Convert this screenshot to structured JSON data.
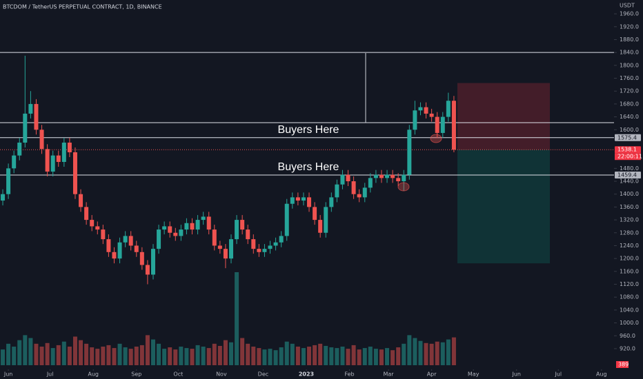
{
  "chart_data": {
    "type": "candlestick",
    "title": "BTCDOM / TetherUS PERPETUAL CONTRACT, 1D, BINANCE",
    "y_unit": "USDT",
    "xlim": [
      -6,
      435
    ],
    "ylim": [
      830,
      2003
    ],
    "xticks": [
      {
        "value": 0,
        "label": "Jun"
      },
      {
        "value": 30,
        "label": "Jul"
      },
      {
        "value": 61,
        "label": "Aug"
      },
      {
        "value": 92,
        "label": "Sep"
      },
      {
        "value": 122,
        "label": "Oct"
      },
      {
        "value": 153,
        "label": "Nov"
      },
      {
        "value": 183,
        "label": "Dec"
      },
      {
        "value": 214,
        "label": "2023"
      },
      {
        "value": 245,
        "label": "Feb"
      },
      {
        "value": 273,
        "label": "Mar"
      },
      {
        "value": 304,
        "label": "Apr"
      },
      {
        "value": 334,
        "label": "May"
      },
      {
        "value": 365,
        "label": "Jun"
      },
      {
        "value": 395,
        "label": "Jul"
      },
      {
        "value": 426,
        "label": "Aug"
      }
    ],
    "yticks": [
      {
        "value": 1960,
        "label": "1960.0"
      },
      {
        "value": 1920,
        "label": "1920.0"
      },
      {
        "value": 1880,
        "label": "1880.0"
      },
      {
        "value": 1840,
        "label": "1840.0"
      },
      {
        "value": 1800,
        "label": "1800.0"
      },
      {
        "value": 1760,
        "label": "1760.0"
      },
      {
        "value": 1720,
        "label": "1720.0"
      },
      {
        "value": 1680,
        "label": "1680.0"
      },
      {
        "value": 1640,
        "label": "1640.0"
      },
      {
        "value": 1600,
        "label": "1600.0"
      },
      {
        "value": 1480,
        "label": "1480.0"
      },
      {
        "value": 1440,
        "label": "1440.0"
      },
      {
        "value": 1400,
        "label": "1400.0"
      },
      {
        "value": 1360,
        "label": "1360.0"
      },
      {
        "value": 1320,
        "label": "1320.0"
      },
      {
        "value": 1280,
        "label": "1280.0"
      },
      {
        "value": 1240,
        "label": "1240.0"
      },
      {
        "value": 1200,
        "label": "1200.0"
      },
      {
        "value": 1160,
        "label": "1160.0"
      },
      {
        "value": 1120,
        "label": "1120.0"
      },
      {
        "value": 1080,
        "label": "1080.0"
      },
      {
        "value": 1040,
        "label": "1040.0"
      },
      {
        "value": 1000,
        "label": "1000.0"
      },
      {
        "value": 960,
        "label": "960.0"
      },
      {
        "value": 920,
        "label": "920.0"
      }
    ],
    "up_color": "#26a69a",
    "down_color": "#ef5350",
    "x": [
      -4,
      0,
      4,
      8,
      12,
      16,
      20,
      24,
      28,
      32,
      36,
      40,
      44,
      48,
      52,
      56,
      60,
      64,
      68,
      72,
      76,
      80,
      84,
      88,
      92,
      96,
      100,
      104,
      108,
      112,
      116,
      120,
      124,
      128,
      132,
      136,
      140,
      144,
      148,
      152,
      156,
      160,
      164,
      168,
      172,
      176,
      180,
      184,
      188,
      192,
      196,
      200,
      204,
      208,
      212,
      216,
      220,
      224,
      228,
      232,
      236,
      240,
      244,
      248,
      252,
      256,
      260,
      264,
      268,
      272,
      276,
      280,
      284,
      288,
      292,
      296,
      300,
      304,
      308,
      312,
      316,
      320
    ],
    "open": [
      1380,
      1400,
      1480,
      1520,
      1560,
      1650,
      1680,
      1600,
      1540,
      1470,
      1520,
      1500,
      1560,
      1530,
      1400,
      1360,
      1320,
      1300,
      1290,
      1260,
      1220,
      1200,
      1250,
      1270,
      1240,
      1220,
      1180,
      1150,
      1230,
      1290,
      1300,
      1280,
      1270,
      1290,
      1310,
      1290,
      1320,
      1330,
      1290,
      1240,
      1230,
      1200,
      1260,
      1320,
      1290,
      1260,
      1230,
      1220,
      1230,
      1240,
      1250,
      1270,
      1370,
      1390,
      1380,
      1390,
      1360,
      1320,
      1280,
      1360,
      1390,
      1430,
      1460,
      1440,
      1400,
      1390,
      1420,
      1450,
      1460,
      1450,
      1460,
      1450,
      1440,
      1460,
      1600,
      1660,
      1670,
      1650,
      1640,
      1590,
      1640,
      1690
    ],
    "high": [
      1415,
      1495,
      1535,
      1575,
      1830,
      1720,
      1695,
      1615,
      1555,
      1535,
      1535,
      1575,
      1575,
      1545,
      1415,
      1375,
      1335,
      1315,
      1305,
      1275,
      1235,
      1265,
      1285,
      1285,
      1255,
      1235,
      1195,
      1245,
      1305,
      1315,
      1315,
      1295,
      1305,
      1325,
      1325,
      1335,
      1345,
      1345,
      1305,
      1255,
      1245,
      1275,
      1335,
      1335,
      1305,
      1275,
      1245,
      1245,
      1255,
      1265,
      1285,
      1385,
      1405,
      1405,
      1405,
      1405,
      1375,
      1335,
      1375,
      1405,
      1445,
      1475,
      1475,
      1455,
      1415,
      1435,
      1465,
      1475,
      1475,
      1475,
      1475,
      1465,
      1475,
      1615,
      1690,
      1685,
      1685,
      1665,
      1655,
      1655,
      1715,
      1705
    ],
    "low": [
      1365,
      1385,
      1465,
      1505,
      1545,
      1635,
      1585,
      1525,
      1455,
      1455,
      1485,
      1485,
      1515,
      1385,
      1345,
      1305,
      1285,
      1275,
      1245,
      1205,
      1185,
      1185,
      1235,
      1225,
      1205,
      1165,
      1120,
      1135,
      1215,
      1275,
      1265,
      1255,
      1255,
      1275,
      1275,
      1275,
      1305,
      1275,
      1225,
      1215,
      1170,
      1185,
      1245,
      1275,
      1245,
      1215,
      1205,
      1205,
      1215,
      1225,
      1235,
      1255,
      1355,
      1365,
      1365,
      1345,
      1305,
      1265,
      1265,
      1345,
      1375,
      1415,
      1425,
      1385,
      1375,
      1375,
      1405,
      1435,
      1435,
      1435,
      1435,
      1425,
      1410,
      1445,
      1585,
      1645,
      1635,
      1625,
      1575,
      1575,
      1625,
      1530
    ],
    "close": [
      1400,
      1480,
      1520,
      1560,
      1650,
      1680,
      1600,
      1540,
      1470,
      1520,
      1500,
      1560,
      1530,
      1400,
      1360,
      1320,
      1300,
      1290,
      1260,
      1220,
      1200,
      1250,
      1270,
      1240,
      1220,
      1180,
      1150,
      1230,
      1290,
      1300,
      1280,
      1270,
      1290,
      1310,
      1290,
      1320,
      1330,
      1290,
      1240,
      1230,
      1200,
      1260,
      1320,
      1290,
      1260,
      1230,
      1220,
      1230,
      1240,
      1250,
      1270,
      1370,
      1390,
      1380,
      1390,
      1360,
      1320,
      1280,
      1360,
      1390,
      1430,
      1460,
      1440,
      1400,
      1390,
      1420,
      1450,
      1460,
      1450,
      1460,
      1450,
      1440,
      1460,
      1600,
      1660,
      1670,
      1650,
      1640,
      1590,
      1640,
      1690,
      1538
    ],
    "volume": [
      220,
      300,
      260,
      350,
      420,
      380,
      300,
      260,
      310,
      240,
      280,
      330,
      260,
      400,
      350,
      300,
      250,
      230,
      260,
      280,
      240,
      300,
      250,
      230,
      260,
      280,
      420,
      360,
      300,
      230,
      250,
      220,
      260,
      240,
      230,
      280,
      260,
      240,
      300,
      270,
      350,
      320,
      1300,
      380,
      300,
      260,
      240,
      220,
      230,
      210,
      250,
      330,
      300,
      260,
      240,
      260,
      280,
      300,
      270,
      250,
      240,
      260,
      230,
      280,
      220,
      240,
      260,
      230,
      220,
      240,
      210,
      250,
      300,
      420,
      380,
      340,
      310,
      300,
      330,
      320,
      360,
      389
    ],
    "levels": [
      1840,
      1622,
      1575.4,
      1459.4
    ],
    "last_price": 1538.1,
    "countdown": "22:00:11",
    "position": {
      "stop": 1745,
      "entry": 1538.1,
      "target": 1185
    },
    "annotations": [
      "Buyers Here",
      "Buyers Here"
    ]
  }
}
